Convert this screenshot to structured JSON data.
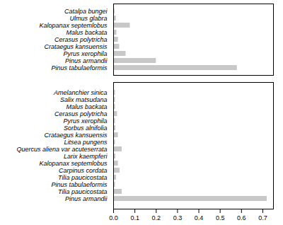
{
  "chart_data": [
    {
      "type": "bar",
      "orientation": "horizontal",
      "categories": [
        "Catalpa bungei",
        "Ulmus glabra",
        "Kalopanax septemlobus",
        "Malus backata",
        "Cerasus polytricha",
        "Crataegus kansuensis",
        "Pyrus xerophila",
        "Pinus armandii",
        "Pinus tabulaeformis"
      ],
      "values": [
        0.006,
        0.012,
        0.078,
        0.015,
        0.022,
        0.028,
        0.058,
        0.2,
        0.58
      ],
      "color": "#c8c8c8",
      "xlim": [
        0,
        0.75
      ],
      "tick_labels": "y"
    },
    {
      "type": "bar",
      "orientation": "horizontal",
      "categories": [
        "Amelanchier sinica",
        "Salix matsudana",
        "Malus backata",
        "Cerasus polytricha",
        "Pyrus xerophila",
        "Sorbus alnifolia",
        "Crataegus kansuensis",
        "Litsea pungens",
        "Quercus aliena var acuteserrata",
        "Larix kaempferi",
        "Kalopanax septemlobus",
        "Carpinus cordata",
        "Tilia paucicostata",
        "Pinus tabulaeformis",
        "Tilia paucicostata",
        "Pinus armandii"
      ],
      "values": [
        0.008,
        0.008,
        0.008,
        0.018,
        0.008,
        0.01,
        0.022,
        0.008,
        0.04,
        0.01,
        0.022,
        0.03,
        0.013,
        0.008,
        0.04,
        0.72
      ],
      "color": "#c8c8c8",
      "xlim": [
        0,
        0.75
      ],
      "xticks": [
        {
          "value": 0,
          "label": "0.0"
        },
        0.1,
        0.2,
        0.3,
        0.4,
        0.5,
        0.6,
        0.7
      ]
    }
  ]
}
